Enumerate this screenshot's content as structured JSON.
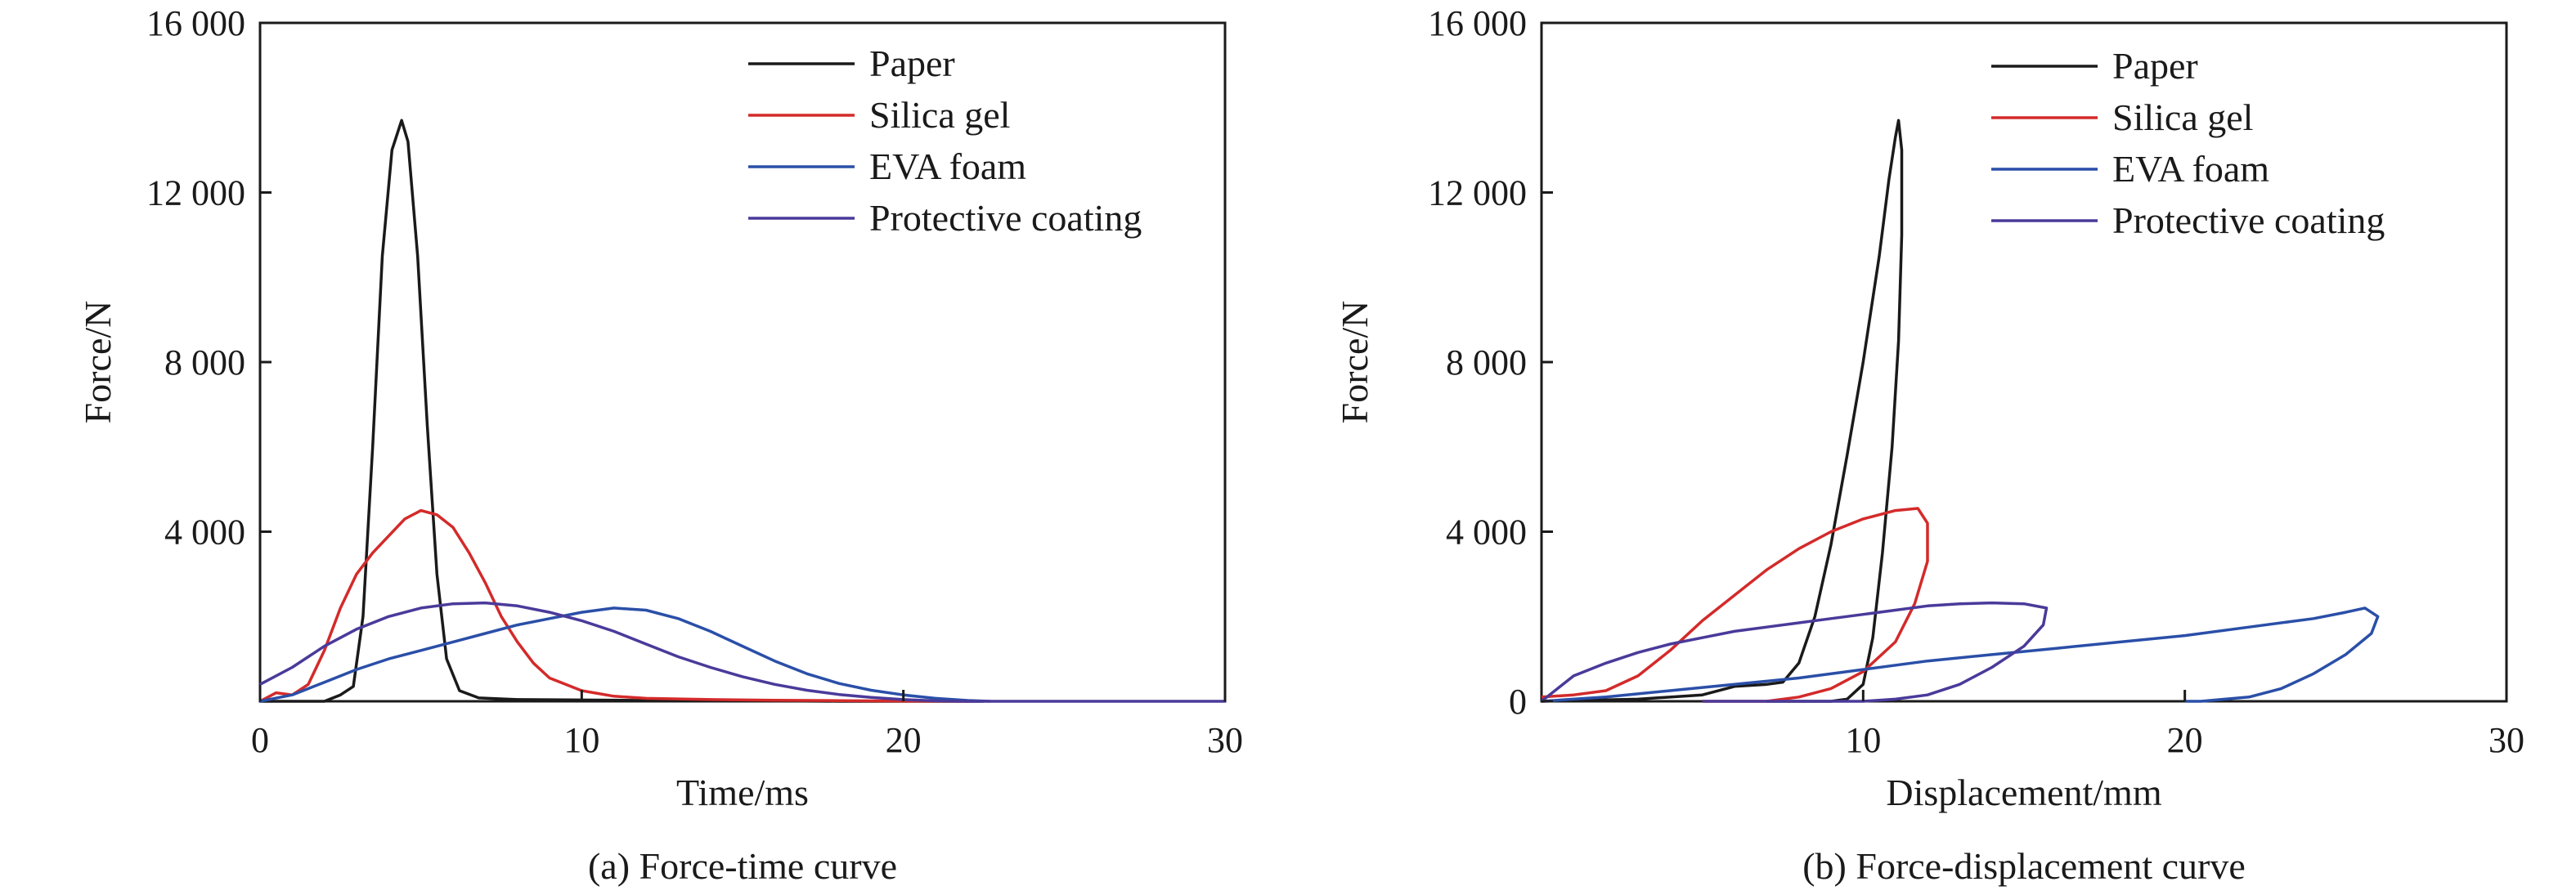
{
  "chart_data": [
    {
      "type": "line",
      "caption": "(a) Force-time curve",
      "xlabel": "Time/ms",
      "ylabel": "Force/N",
      "xlim": [
        0,
        30
      ],
      "ylim": [
        0,
        16000
      ],
      "xticks": [
        0,
        10,
        20,
        30
      ],
      "xtick_labels": [
        "0",
        "10",
        "20",
        "30"
      ],
      "yticks": [
        4000,
        8000,
        12000,
        16000
      ],
      "ytick_labels": [
        "4 000",
        "8 000",
        "12 000",
        "16 000"
      ],
      "legend_position": "top-right",
      "series": [
        {
          "name": "Paper",
          "color": "#1a1a1a",
          "points": [
            [
              0,
              0
            ],
            [
              2,
              0
            ],
            [
              2.5,
              150
            ],
            [
              2.9,
              350
            ],
            [
              3.2,
              2000
            ],
            [
              3.5,
              6000
            ],
            [
              3.8,
              10500
            ],
            [
              4.1,
              13000
            ],
            [
              4.4,
              13700
            ],
            [
              4.6,
              13200
            ],
            [
              4.9,
              10500
            ],
            [
              5.2,
              6500
            ],
            [
              5.5,
              3000
            ],
            [
              5.8,
              1000
            ],
            [
              6.2,
              250
            ],
            [
              6.8,
              80
            ],
            [
              8,
              40
            ],
            [
              10,
              30
            ],
            [
              12,
              20
            ],
            [
              14,
              15
            ],
            [
              16,
              10
            ],
            [
              18,
              0
            ],
            [
              22.5,
              0
            ]
          ]
        },
        {
          "name": "Silica gel",
          "color": "#d42a2a",
          "points": [
            [
              0,
              0
            ],
            [
              0.5,
              200
            ],
            [
              1,
              150
            ],
            [
              1.5,
              400
            ],
            [
              2,
              1200
            ],
            [
              2.5,
              2200
            ],
            [
              3,
              3000
            ],
            [
              3.5,
              3500
            ],
            [
              4,
              3900
            ],
            [
              4.5,
              4300
            ],
            [
              5,
              4500
            ],
            [
              5.5,
              4400
            ],
            [
              6,
              4100
            ],
            [
              6.5,
              3500
            ],
            [
              7,
              2800
            ],
            [
              7.5,
              2000
            ],
            [
              8,
              1400
            ],
            [
              8.5,
              900
            ],
            [
              9,
              550
            ],
            [
              10,
              250
            ],
            [
              11,
              120
            ],
            [
              12,
              70
            ],
            [
              14,
              40
            ],
            [
              16,
              25
            ],
            [
              18,
              15
            ],
            [
              20,
              5
            ],
            [
              22,
              0
            ]
          ]
        },
        {
          "name": "EVA foam",
          "color": "#2a4fa8",
          "points": [
            [
              0,
              0
            ],
            [
              1,
              150
            ],
            [
              2,
              450
            ],
            [
              3,
              750
            ],
            [
              4,
              1000
            ],
            [
              5,
              1200
            ],
            [
              6,
              1400
            ],
            [
              7,
              1600
            ],
            [
              8,
              1800
            ],
            [
              9,
              1950
            ],
            [
              10,
              2100
            ],
            [
              11,
              2200
            ],
            [
              12,
              2150
            ],
            [
              13,
              1950
            ],
            [
              14,
              1650
            ],
            [
              15,
              1300
            ],
            [
              16,
              950
            ],
            [
              17,
              650
            ],
            [
              18,
              420
            ],
            [
              19,
              260
            ],
            [
              20,
              150
            ],
            [
              21,
              70
            ],
            [
              22,
              20
            ],
            [
              22.7,
              0
            ]
          ]
        },
        {
          "name": "Protective coating",
          "color": "#4a3a9a",
          "points": [
            [
              0,
              400
            ],
            [
              1,
              800
            ],
            [
              2,
              1300
            ],
            [
              3,
              1700
            ],
            [
              4,
              2000
            ],
            [
              5,
              2200
            ],
            [
              6,
              2300
            ],
            [
              7,
              2320
            ],
            [
              8,
              2250
            ],
            [
              9,
              2100
            ],
            [
              10,
              1900
            ],
            [
              11,
              1650
            ],
            [
              12,
              1350
            ],
            [
              13,
              1050
            ],
            [
              14,
              800
            ],
            [
              15,
              580
            ],
            [
              16,
              400
            ],
            [
              17,
              260
            ],
            [
              18,
              160
            ],
            [
              19,
              90
            ],
            [
              20,
              40
            ],
            [
              21,
              10
            ],
            [
              22,
              0
            ],
            [
              30,
              0
            ]
          ]
        }
      ]
    },
    {
      "type": "line",
      "caption": "(b) Force-displacement curve",
      "xlabel": "Displacement/mm",
      "ylabel": "Force/N",
      "xlim": [
        0,
        30
      ],
      "ylim": [
        0,
        16000
      ],
      "xticks": [
        10,
        20,
        30
      ],
      "xtick_labels": [
        "10",
        "20",
        "30"
      ],
      "yticks": [
        0,
        4000,
        8000,
        12000,
        16000
      ],
      "ytick_labels": [
        "0",
        "4 000",
        "8 000",
        "12 000",
        "16 000"
      ],
      "legend_position": "top-right",
      "series": [
        {
          "name": "Paper",
          "color": "#1a1a1a",
          "points": [
            [
              0,
              0
            ],
            [
              3,
              50
            ],
            [
              5,
              150
            ],
            [
              6,
              350
            ],
            [
              7,
              400
            ],
            [
              7.5,
              450
            ],
            [
              8,
              900
            ],
            [
              8.5,
              2000
            ],
            [
              9,
              3700
            ],
            [
              9.5,
              5800
            ],
            [
              10,
              8000
            ],
            [
              10.5,
              10500
            ],
            [
              10.8,
              12300
            ],
            [
              11,
              13300
            ],
            [
              11.1,
              13700
            ],
            [
              11.2,
              13000
            ],
            [
              11.2,
              11000
            ],
            [
              11.1,
              8500
            ],
            [
              10.9,
              6000
            ],
            [
              10.6,
              3500
            ],
            [
              10.3,
              1500
            ],
            [
              10,
              400
            ],
            [
              9.5,
              50
            ],
            [
              9,
              0
            ],
            [
              7,
              0
            ]
          ]
        },
        {
          "name": "Silica gel",
          "color": "#d42a2a",
          "points": [
            [
              0,
              100
            ],
            [
              1,
              150
            ],
            [
              2,
              250
            ],
            [
              3,
              600
            ],
            [
              4,
              1200
            ],
            [
              5,
              1900
            ],
            [
              6,
              2500
            ],
            [
              7,
              3100
            ],
            [
              8,
              3600
            ],
            [
              9,
              4000
            ],
            [
              10,
              4300
            ],
            [
              11,
              4500
            ],
            [
              11.7,
              4550
            ],
            [
              12,
              4200
            ],
            [
              12,
              3300
            ],
            [
              11.6,
              2300
            ],
            [
              11,
              1400
            ],
            [
              10,
              700
            ],
            [
              9,
              300
            ],
            [
              8,
              100
            ],
            [
              7,
              0
            ],
            [
              5,
              0
            ]
          ]
        },
        {
          "name": "EVA foam",
          "color": "#2a4fa8",
          "points": [
            [
              0,
              0
            ],
            [
              2,
              100
            ],
            [
              4,
              250
            ],
            [
              6,
              400
            ],
            [
              8,
              550
            ],
            [
              10,
              750
            ],
            [
              12,
              950
            ],
            [
              14,
              1100
            ],
            [
              16,
              1250
            ],
            [
              18,
              1400
            ],
            [
              20,
              1550
            ],
            [
              22,
              1750
            ],
            [
              24,
              1950
            ],
            [
              25,
              2100
            ],
            [
              25.6,
              2200
            ],
            [
              26,
              2000
            ],
            [
              25.8,
              1600
            ],
            [
              25,
              1100
            ],
            [
              24,
              650
            ],
            [
              23,
              300
            ],
            [
              22,
              100
            ],
            [
              20.5,
              0
            ],
            [
              20,
              0
            ]
          ]
        },
        {
          "name": "Protective coating",
          "color": "#4a3a9a",
          "points": [
            [
              0,
              0
            ],
            [
              0.5,
              300
            ],
            [
              1,
              600
            ],
            [
              2,
              900
            ],
            [
              3,
              1150
            ],
            [
              4,
              1350
            ],
            [
              5,
              1500
            ],
            [
              6,
              1650
            ],
            [
              7,
              1750
            ],
            [
              8,
              1850
            ],
            [
              9,
              1950
            ],
            [
              10,
              2050
            ],
            [
              11,
              2150
            ],
            [
              12,
              2250
            ],
            [
              13,
              2300
            ],
            [
              14,
              2320
            ],
            [
              15,
              2300
            ],
            [
              15.7,
              2200
            ],
            [
              15.6,
              1800
            ],
            [
              15,
              1300
            ],
            [
              14,
              800
            ],
            [
              13,
              400
            ],
            [
              12,
              150
            ],
            [
              11,
              50
            ],
            [
              10,
              0
            ],
            [
              5,
              0
            ]
          ]
        }
      ]
    }
  ]
}
